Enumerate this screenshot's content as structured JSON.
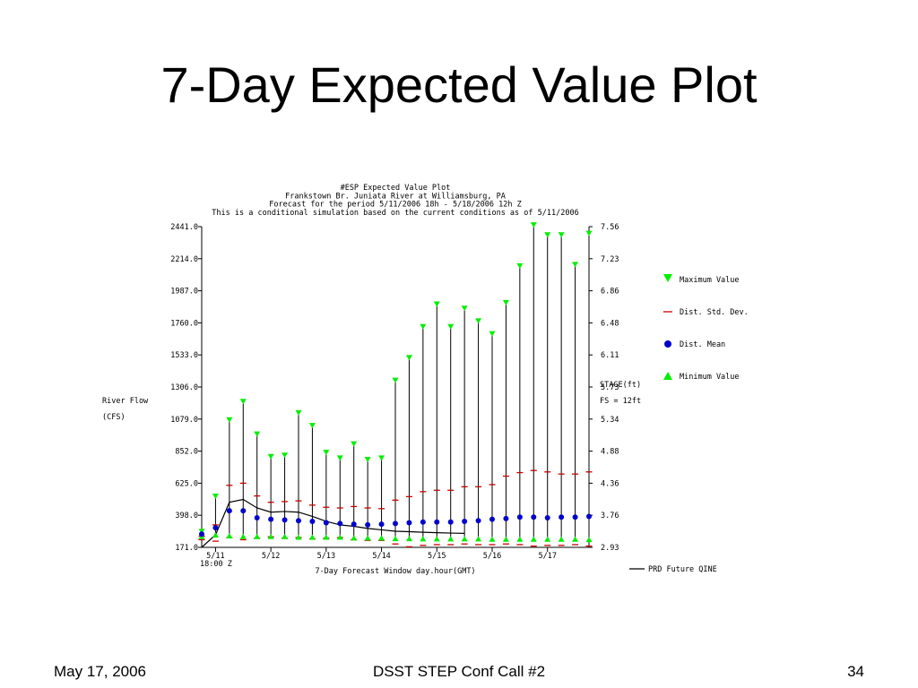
{
  "slide": {
    "title": "7-Day Expected Value Plot",
    "footer_left": "May 17, 2006",
    "footer_center": "DSST STEP Conf Call #2",
    "footer_right": "34"
  },
  "chart_data": {
    "type": "scatter",
    "title_lines": [
      "#ESP Expected Value Plot",
      "Frankstown Br. Juniata River at Williamsburg, PA",
      "Forecast for the period 5/11/2006 18h - 5/18/2006 12h Z",
      "This is a conditional simulation based on the current conditions as of 5/11/2006"
    ],
    "ylabel": "River Flow",
    "ylabel_unit": "(CFS)",
    "xlabel": "7-Day Forecast Window day.hour(GMT)",
    "ylim": [
      171.0,
      2441.0
    ],
    "y_ticks": [
      "171.0",
      "398.0",
      "625.0",
      "852.0",
      "1079.0",
      "1306.0",
      "1533.0",
      "1760.0",
      "1987.0",
      "2214.0",
      "2441.0"
    ],
    "y2_label": "STAGE(ft)",
    "y2_note": "FS = 12ft",
    "y2_ticks": [
      "2.93",
      "3.76",
      "4.36",
      "4.88",
      "5.34",
      "5.73",
      "6.11",
      "6.48",
      "6.86",
      "7.23",
      "7.56"
    ],
    "x_tick_labels": [
      "5/11",
      "5/12",
      "5/13",
      "5/14",
      "5/15",
      "5/16",
      "5/17"
    ],
    "x_start_label": "18:00 Z",
    "x_range_hours": [
      0,
      168
    ],
    "x_tick_hours": [
      6,
      30,
      54,
      78,
      102,
      126,
      150
    ],
    "legend": {
      "max": "Maximum Value",
      "std": "Dist. Std. Dev.",
      "mean": "Dist. Mean",
      "min": "Minimum Value",
      "line": "PRD Future QINE"
    },
    "colors": {
      "max": "#00ee00",
      "min": "#00ee00",
      "mean": "#0000cc",
      "std": "#cc0000",
      "line": "#000000"
    },
    "hours": [
      0,
      6,
      12,
      18,
      24,
      30,
      36,
      42,
      48,
      54,
      60,
      66,
      72,
      78,
      84,
      90,
      96,
      102,
      108,
      114,
      120,
      126,
      132,
      138,
      144,
      150,
      156,
      162,
      168
    ],
    "max_values": [
      270,
      520,
      1060,
      1190,
      960,
      800,
      810,
      1110,
      1020,
      830,
      790,
      890,
      780,
      790,
      1340,
      1500,
      1720,
      1880,
      1720,
      1850,
      1760,
      1670,
      1890,
      2150,
      2440,
      2370,
      2370,
      2160,
      2380
    ],
    "std_upper": [
      250,
      330,
      610,
      625,
      535,
      490,
      495,
      500,
      470,
      455,
      450,
      460,
      450,
      445,
      505,
      530,
      565,
      575,
      575,
      600,
      600,
      615,
      675,
      700,
      715,
      705,
      690,
      690,
      705
    ],
    "std_lower": [
      225,
      215,
      240,
      225,
      235,
      245,
      235,
      240,
      230,
      235,
      240,
      225,
      220,
      220,
      195,
      175,
      185,
      190,
      190,
      195,
      190,
      190,
      195,
      190,
      180,
      185,
      185,
      190,
      180
    ],
    "mean_values": [
      265,
      310,
      430,
      430,
      380,
      370,
      365,
      360,
      355,
      345,
      340,
      335,
      330,
      335,
      340,
      345,
      350,
      350,
      350,
      355,
      360,
      370,
      375,
      385,
      385,
      380,
      385,
      385,
      390
    ],
    "min_values": [
      255,
      265,
      260,
      255,
      255,
      255,
      255,
      250,
      250,
      250,
      250,
      245,
      245,
      245,
      240,
      240,
      238,
      238,
      238,
      238,
      238,
      236,
      236,
      236,
      236,
      236,
      236,
      236,
      234
    ],
    "prd_line": [
      [
        0,
        171
      ],
      [
        6,
        260
      ],
      [
        12,
        490
      ],
      [
        18,
        510
      ],
      [
        24,
        450
      ],
      [
        30,
        420
      ],
      [
        36,
        425
      ],
      [
        42,
        420
      ],
      [
        48,
        390
      ],
      [
        54,
        355
      ],
      [
        60,
        330
      ],
      [
        66,
        320
      ],
      [
        72,
        305
      ],
      [
        78,
        295
      ],
      [
        84,
        285
      ],
      [
        90,
        282
      ],
      [
        96,
        278
      ],
      [
        102,
        275
      ],
      [
        108,
        272
      ],
      [
        114,
        270
      ]
    ]
  }
}
